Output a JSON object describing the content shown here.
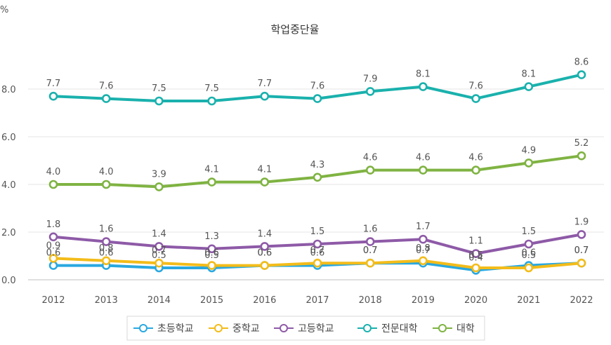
{
  "chart_data": {
    "type": "line",
    "title": "학업중단율",
    "unit_label": "%",
    "xlabel": "",
    "ylabel": "%",
    "categories": [
      "2012",
      "2013",
      "2014",
      "2015",
      "2016",
      "2017",
      "2018",
      "2019",
      "2020",
      "2021",
      "2022"
    ],
    "ylim": [
      0,
      9
    ],
    "yticks": [
      "0.0",
      "2.0",
      "4.0",
      "6.0",
      "8.0"
    ],
    "ytick_values": [
      0,
      2,
      4,
      6,
      8
    ],
    "grid": true,
    "legend_position": "bottom",
    "series": [
      {
        "name": "초등학교",
        "color": "#29a8e0",
        "values": [
          0.6,
          0.6,
          0.5,
          0.5,
          0.6,
          0.6,
          0.7,
          0.7,
          0.4,
          0.6,
          0.7
        ],
        "labels": [
          "0.6",
          "0.6",
          "0.5",
          "0.5",
          "0.6",
          "0.6",
          "0.7",
          "0.7",
          "0.4",
          "0.6",
          "0.7"
        ]
      },
      {
        "name": "중학교",
        "color": "#f3bc1a",
        "values": [
          0.9,
          0.8,
          0.7,
          0.6,
          0.6,
          0.7,
          0.7,
          0.8,
          0.5,
          0.5,
          0.7
        ],
        "labels": [
          "0.9",
          "0.8",
          "0.7",
          "0.6",
          "0.6",
          "0.7",
          "0.7",
          "0.8",
          "0.5",
          "0.5",
          "0.7"
        ]
      },
      {
        "name": "고등학교",
        "color": "#8e5aa7",
        "values": [
          1.8,
          1.6,
          1.4,
          1.3,
          1.4,
          1.5,
          1.6,
          1.7,
          1.1,
          1.5,
          1.9
        ],
        "labels": [
          "1.8",
          "1.6",
          "1.4",
          "1.3",
          "1.4",
          "1.5",
          "1.6",
          "1.7",
          "1.1",
          "1.5",
          "1.9"
        ]
      },
      {
        "name": "전문대학",
        "color": "#1ab1ad",
        "values": [
          7.7,
          7.6,
          7.5,
          7.5,
          7.7,
          7.6,
          7.9,
          8.1,
          7.6,
          8.1,
          8.6
        ],
        "labels": [
          "7.7",
          "7.6",
          "7.5",
          "7.5",
          "7.7",
          "7.6",
          "7.9",
          "8.1",
          "7.6",
          "8.1",
          "8.6"
        ]
      },
      {
        "name": "대학",
        "color": "#7fb342",
        "values": [
          4.0,
          4.0,
          3.9,
          4.1,
          4.1,
          4.3,
          4.6,
          4.6,
          4.6,
          4.9,
          5.2
        ],
        "labels": [
          "4.0",
          "4.0",
          "3.9",
          "4.1",
          "4.1",
          "4.3",
          "4.6",
          "4.6",
          "4.6",
          "4.9",
          "5.2"
        ]
      }
    ]
  }
}
